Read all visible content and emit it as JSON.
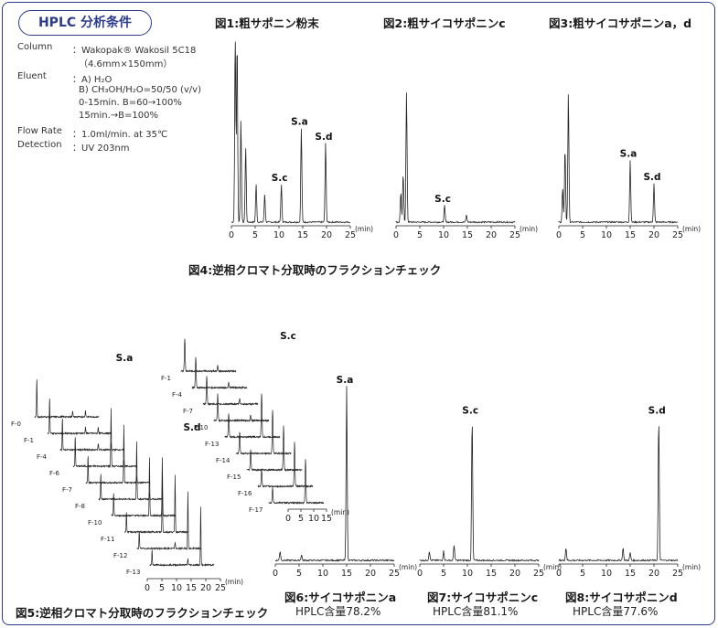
{
  "conditions": {
    "title": "HPLC 分析条件",
    "column_label": "Column",
    "column_value": "：Wakopak® Wakosil 5C18",
    "column_dim": "（4.6mm×150mm）",
    "eluent_label": "Eluent",
    "eluent_a": "：A) H₂O",
    "eluent_b": "B) CH₃OH/H₂O=50/50 (v/v)",
    "eluent_g1": "0-15min. B=60→100%",
    "eluent_g2": "15min.→B=100%",
    "flow_label": "Flow Rate",
    "flow_value": "：1.0ml/min. at 35℃",
    "det_label": "Detection",
    "det_value": "：UV 203nm"
  },
  "captions": {
    "fig4": "図4:逆相クロマト分取時のフラクションチェック",
    "fig5": "図5:逆相クロマト分取時のフラクションチェック",
    "hplc6": "HPLC含量78.2%",
    "hplc7": "HPLC含量81.1%",
    "hplc8": "HPLC含量77.6%"
  },
  "chart_data": [
    {
      "type": "line",
      "title": "図1:粗サポニン粉末",
      "xlabel": "(min)",
      "xticks": [
        "0",
        "5",
        "10",
        "15",
        "20",
        "25"
      ],
      "xlim": [
        0,
        25
      ],
      "peaks": [
        {
          "t": 0.8,
          "h": 1.0
        },
        {
          "t": 1.2,
          "h": 0.98
        },
        {
          "t": 2.0,
          "h": 0.55
        },
        {
          "t": 3.0,
          "h": 0.4
        },
        {
          "t": 5.2,
          "h": 0.2
        },
        {
          "t": 7.0,
          "h": 0.15
        },
        {
          "t": 10.5,
          "h": 0.2,
          "label": "S.c"
        },
        {
          "t": 14.7,
          "h": 0.5,
          "label": "S.a"
        },
        {
          "t": 19.8,
          "h": 0.42,
          "label": "S.d"
        }
      ]
    },
    {
      "type": "line",
      "title": "図2:粗サイコサポニンc",
      "xlabel": "(min)",
      "xticks": [
        "0",
        "5",
        "10",
        "15",
        "20",
        "25"
      ],
      "xlim": [
        0,
        25
      ],
      "peaks": [
        {
          "t": 1.0,
          "h": 0.22
        },
        {
          "t": 1.5,
          "h": 0.35
        },
        {
          "t": 2.2,
          "h": 0.95
        },
        {
          "t": 10.2,
          "h": 0.12,
          "label": "S.c"
        },
        {
          "t": 14.8,
          "h": 0.05
        }
      ]
    },
    {
      "type": "line",
      "title": "図3:粗サイコサポニンa，d",
      "xlabel": "(min)",
      "xticks": [
        "0",
        "5",
        "10",
        "15",
        "20",
        "25"
      ],
      "xlim": [
        0,
        25
      ],
      "peaks": [
        {
          "t": 0.8,
          "h": 0.25
        },
        {
          "t": 1.3,
          "h": 0.55
        },
        {
          "t": 2.0,
          "h": 0.95
        },
        {
          "t": 15.0,
          "h": 0.45,
          "label": "S.a"
        },
        {
          "t": 20.0,
          "h": 0.28,
          "label": "S.d"
        }
      ]
    },
    {
      "type": "line",
      "title": "図6:サイコサポニンa",
      "xlabel": "(min)",
      "xticks": [
        "0",
        "5",
        "10",
        "15",
        "20",
        "25"
      ],
      "xlim": [
        0,
        25
      ],
      "peaks": [
        {
          "t": 1.0,
          "h": 0.05
        },
        {
          "t": 5.5,
          "h": 0.03
        },
        {
          "t": 15.0,
          "h": 0.95,
          "label": "S.a"
        }
      ]
    },
    {
      "type": "line",
      "title": "図7:サイコサポニンc",
      "xlabel": "(min)",
      "xticks": [
        "0",
        "5",
        "10",
        "15",
        "20",
        "25"
      ],
      "xlim": [
        0,
        25
      ],
      "peaks": [
        {
          "t": 2.0,
          "h": 0.06
        },
        {
          "t": 5.0,
          "h": 0.06
        },
        {
          "t": 7.2,
          "h": 0.1
        },
        {
          "t": 11.0,
          "h": 0.92,
          "label": "S.c"
        }
      ]
    },
    {
      "type": "line",
      "title": "図8:サイコサポニンd",
      "xlabel": "(min)",
      "xticks": [
        "0",
        "5",
        "10",
        "15",
        "20",
        "25"
      ],
      "xlim": [
        0,
        25
      ],
      "peaks": [
        {
          "t": 1.5,
          "h": 0.08
        },
        {
          "t": 13.5,
          "h": 0.08
        },
        {
          "t": 15.0,
          "h": 0.05
        },
        {
          "t": 21.0,
          "h": 0.92,
          "label": "S.d"
        }
      ]
    },
    {
      "type": "line",
      "title": "図5:逆相クロマト分取時のフラクションチェック",
      "xlabel": "(min)",
      "xticks": [
        "0",
        "5",
        "10",
        "15",
        "20",
        "25"
      ],
      "fractions": [
        "F-0",
        "F-1",
        "F-4",
        "F-6",
        "F-7",
        "F-8",
        "F-10",
        "F-11",
        "F-12",
        "F-13"
      ],
      "peak_labels": [
        "S.a",
        "S.d"
      ]
    },
    {
      "type": "line",
      "title": "図4:逆相クロマト分取時のフラクションチェック",
      "xlabel": "(min)",
      "xticks": [
        "0",
        "5",
        "10",
        "15"
      ],
      "fractions": [
        "F-1",
        "F-4",
        "F-7",
        "F-10",
        "F-13",
        "F-14",
        "F-15",
        "F-16",
        "F-17"
      ],
      "peak_labels": [
        "S.c"
      ]
    }
  ]
}
